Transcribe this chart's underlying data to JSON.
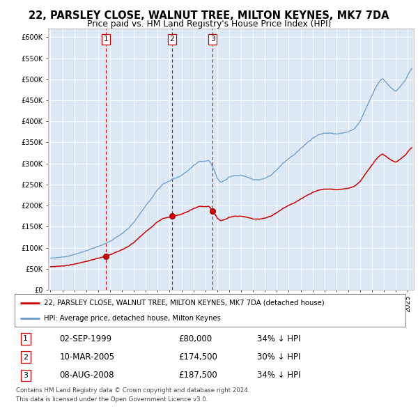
{
  "title": "22, PARSLEY CLOSE, WALNUT TREE, MILTON KEYNES, MK7 7DA",
  "subtitle": "Price paid vs. HM Land Registry's House Price Index (HPI)",
  "ylim": [
    0,
    620000
  ],
  "yticks": [
    0,
    50000,
    100000,
    150000,
    200000,
    250000,
    300000,
    350000,
    400000,
    450000,
    500000,
    550000,
    600000
  ],
  "xlim_start": 1994.8,
  "xlim_end": 2025.5,
  "legend_line1": "22, PARSLEY CLOSE, WALNUT TREE, MILTON KEYNES, MK7 7DA (detached house)",
  "legend_line2": "HPI: Average price, detached house, Milton Keynes",
  "transactions": [
    {
      "num": 1,
      "date": "02-SEP-1999",
      "price": 80000,
      "pct": "34%",
      "dir": "↓",
      "year": 1999.67
    },
    {
      "num": 2,
      "date": "10-MAR-2005",
      "price": 174500,
      "pct": "30%",
      "dir": "↓",
      "year": 2005.19
    },
    {
      "num": 3,
      "date": "08-AUG-2008",
      "price": 187500,
      "pct": "34%",
      "dir": "↓",
      "year": 2008.6
    }
  ],
  "footer1": "Contains HM Land Registry data © Crown copyright and database right 2024.",
  "footer2": "This data is licensed under the Open Government Licence v3.0.",
  "red_color": "#cc0000",
  "blue_color": "#6699cc",
  "chart_bg": "#dce9f5",
  "grid_color": "#ffffff",
  "fig_bg": "#ffffff",
  "title_fontsize": 10.5,
  "subtitle_fontsize": 9
}
